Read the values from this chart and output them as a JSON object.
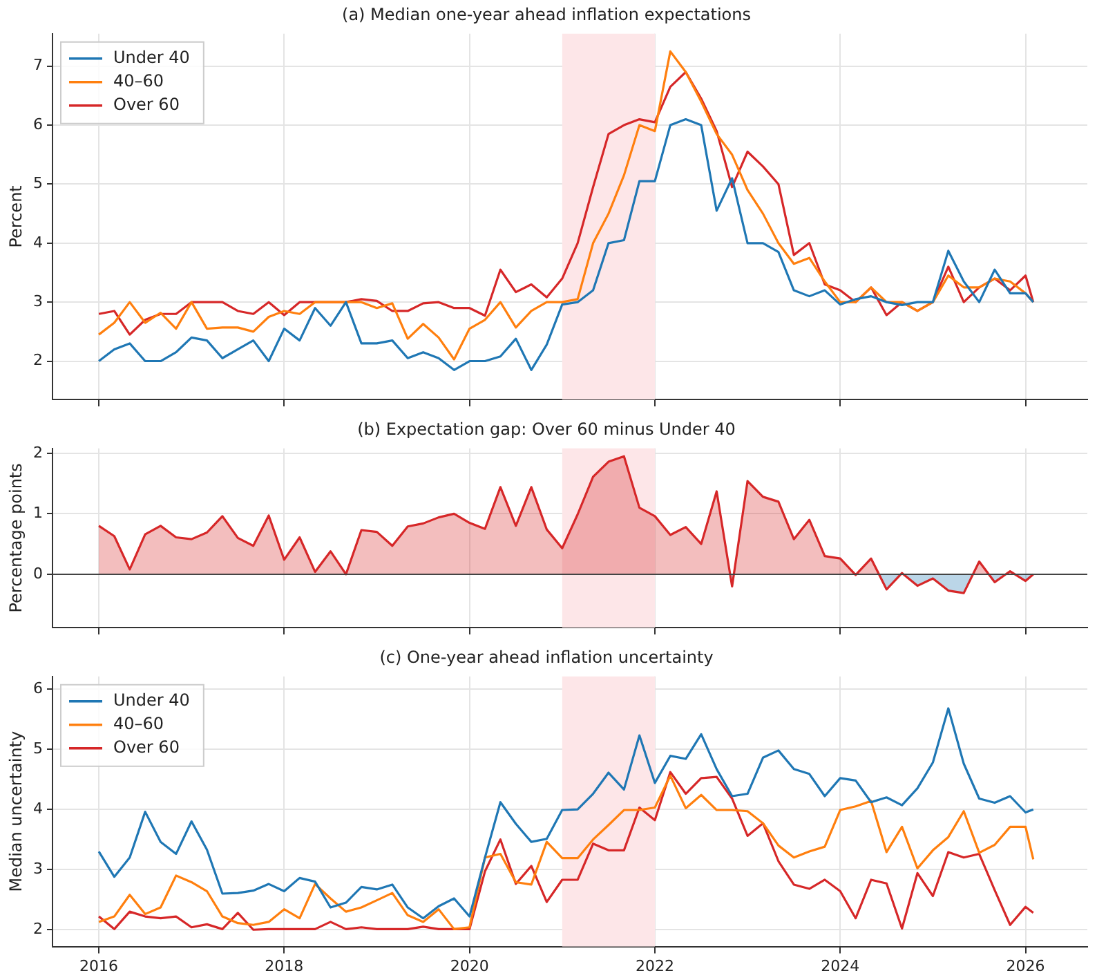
{
  "chart_data": [
    {
      "type": "line",
      "title": "(a) Median one-year ahead inflation expectations",
      "ylabel": "Percent",
      "x": [
        "2016-01",
        "2016-03",
        "2016-05",
        "2016-07",
        "2016-09",
        "2016-11",
        "2017-01",
        "2017-03",
        "2017-05",
        "2017-07",
        "2017-09",
        "2017-11",
        "2018-01",
        "2018-03",
        "2018-05",
        "2018-07",
        "2018-09",
        "2018-11",
        "2019-01",
        "2019-03",
        "2019-05",
        "2019-07",
        "2019-09",
        "2019-11",
        "2020-01",
        "2020-03",
        "2020-05",
        "2020-07",
        "2020-09",
        "2020-11",
        "2021-01",
        "2021-03",
        "2021-05",
        "2021-07",
        "2021-09",
        "2021-11",
        "2022-01",
        "2022-03",
        "2022-05",
        "2022-07",
        "2022-09",
        "2022-11",
        "2023-01",
        "2023-03",
        "2023-05",
        "2023-07",
        "2023-09",
        "2023-11",
        "2024-01",
        "2024-03",
        "2024-05",
        "2024-07",
        "2024-09",
        "2024-11",
        "2025-01",
        "2025-03",
        "2025-05",
        "2025-07",
        "2025-09",
        "2025-11",
        "2026-01",
        "2026-02"
      ],
      "series": [
        {
          "name": "Under 40",
          "color": "#1f77b4",
          "values": [
            2.0,
            2.2,
            2.3,
            2.0,
            2.0,
            2.15,
            2.4,
            2.35,
            2.05,
            2.2,
            2.35,
            2.0,
            2.55,
            2.35,
            2.9,
            2.6,
            3.0,
            2.3,
            2.3,
            2.35,
            2.05,
            2.15,
            2.05,
            1.85,
            2.0,
            2.0,
            2.08,
            2.38,
            1.85,
            2.28,
            2.96,
            3.0,
            3.2,
            4.0,
            4.05,
            5.05,
            5.05,
            6.0,
            6.1,
            6.0,
            4.55,
            5.1,
            4.0,
            4.0,
            3.85,
            3.2,
            3.1,
            3.2,
            2.96,
            3.05,
            3.1,
            3.0,
            2.95,
            3.0,
            3.0,
            3.87,
            3.35,
            3.0,
            3.55,
            3.15,
            3.15,
            3.0
          ]
        },
        {
          "name": "40–60",
          "color": "#ff7f0e",
          "values": [
            2.45,
            2.65,
            3.0,
            2.65,
            2.82,
            2.55,
            3.0,
            2.55,
            2.57,
            2.57,
            2.5,
            2.75,
            2.85,
            2.8,
            3.0,
            3.0,
            3.0,
            3.0,
            2.9,
            2.98,
            2.38,
            2.63,
            2.4,
            2.03,
            2.55,
            2.7,
            3.0,
            2.57,
            2.85,
            3.0,
            3.0,
            3.05,
            4.0,
            4.5,
            5.15,
            6.0,
            5.9,
            7.25,
            6.9,
            6.4,
            5.85,
            5.5,
            4.9,
            4.5,
            4.0,
            3.65,
            3.75,
            3.35,
            3.0,
            3.0,
            3.25,
            3.0,
            3.0,
            2.85,
            3.0,
            3.45,
            3.25,
            3.25,
            3.4,
            3.35,
            3.15,
            3.0
          ]
        },
        {
          "name": "Over 60",
          "color": "#d62728",
          "values": [
            2.8,
            2.85,
            2.45,
            2.7,
            2.8,
            2.8,
            3.0,
            3.0,
            3.0,
            2.85,
            2.8,
            3.0,
            2.78,
            3.0,
            3.0,
            3.0,
            3.0,
            3.05,
            3.02,
            2.85,
            2.85,
            2.98,
            3.0,
            2.9,
            2.9,
            2.77,
            3.55,
            3.17,
            3.3,
            3.08,
            3.4,
            4.0,
            4.95,
            5.85,
            6.0,
            6.1,
            6.05,
            6.65,
            6.9,
            6.45,
            5.9,
            4.95,
            5.55,
            5.3,
            5.0,
            3.8,
            4.0,
            3.3,
            3.2,
            3.0,
            3.25,
            2.78,
            3.0,
            2.85,
            3.0,
            3.6,
            3.0,
            3.25,
            3.4,
            3.2,
            3.45,
            3.0
          ]
        }
      ],
      "xlim": [
        "2015-07",
        "2026-09"
      ],
      "xticks": [
        "2016",
        "2018",
        "2020",
        "2022",
        "2024",
        "2026"
      ],
      "ylim": [
        1.35,
        7.55
      ],
      "yticks": [
        2,
        3,
        4,
        5,
        6,
        7
      ],
      "bands": [
        {
          "axis": "x",
          "from": "2021-01",
          "to": "2022-01",
          "color": "#fde6e8"
        }
      ],
      "grid": true,
      "legend": "top left",
      "tick_labels": "y"
    },
    {
      "type": "area",
      "title": "(b) Expectation gap: Over 60 minus Under 40",
      "ylabel": "Percentage points",
      "x": [
        "2016-01",
        "2016-03",
        "2016-05",
        "2016-07",
        "2016-09",
        "2016-11",
        "2017-01",
        "2017-03",
        "2017-05",
        "2017-07",
        "2017-09",
        "2017-11",
        "2018-01",
        "2018-03",
        "2018-05",
        "2018-07",
        "2018-09",
        "2018-11",
        "2019-01",
        "2019-03",
        "2019-05",
        "2019-07",
        "2019-09",
        "2019-11",
        "2020-01",
        "2020-03",
        "2020-05",
        "2020-07",
        "2020-09",
        "2020-11",
        "2021-01",
        "2021-03",
        "2021-05",
        "2021-07",
        "2021-09",
        "2021-11",
        "2022-01",
        "2022-03",
        "2022-05",
        "2022-07",
        "2022-09",
        "2022-11",
        "2023-01",
        "2023-03",
        "2023-05",
        "2023-07",
        "2023-09",
        "2023-11",
        "2024-01",
        "2024-03",
        "2024-05",
        "2024-07",
        "2024-09",
        "2024-11",
        "2025-01",
        "2025-03",
        "2025-05",
        "2025-07",
        "2025-09",
        "2025-11",
        "2026-01",
        "2026-02"
      ],
      "series": [
        {
          "color": "#d62728",
          "values": [
            0.8,
            0.63,
            0.08,
            0.66,
            0.8,
            0.61,
            0.58,
            0.69,
            0.96,
            0.6,
            0.47,
            0.97,
            0.24,
            0.61,
            0.04,
            0.38,
            0.0,
            0.73,
            0.7,
            0.47,
            0.79,
            0.84,
            0.94,
            1.0,
            0.85,
            0.75,
            1.44,
            0.8,
            1.44,
            0.74,
            0.43,
            0.99,
            1.61,
            1.86,
            1.95,
            1.1,
            0.96,
            0.65,
            0.78,
            0.5,
            1.37,
            -0.2,
            1.54,
            1.28,
            1.2,
            0.58,
            0.9,
            0.3,
            0.26,
            -0.01,
            0.26,
            -0.25,
            0.02,
            -0.19,
            -0.07,
            -0.27,
            -0.31,
            0.21,
            -0.13,
            0.05,
            -0.11,
            0.0
          ]
        }
      ],
      "xlim": [
        "2015-07",
        "2026-09"
      ],
      "xticks": [
        "2016",
        "2018",
        "2020",
        "2022",
        "2024",
        "2026"
      ],
      "ylim": [
        -0.88,
        2.08
      ],
      "yticks": [
        0,
        1,
        2
      ],
      "bands": [
        {
          "axis": "x",
          "from": "2021-01",
          "to": "2022-01",
          "color": "#fde6e8"
        }
      ],
      "ref_lines": [
        {
          "axis": "y",
          "value": 0,
          "color": "#444444"
        }
      ],
      "grid": true,
      "tick_labels": "y"
    },
    {
      "type": "line",
      "title": "(c) One-year ahead inflation uncertainty",
      "ylabel": "Median uncertainty",
      "x": [
        "2016-01",
        "2016-03",
        "2016-05",
        "2016-07",
        "2016-09",
        "2016-11",
        "2017-01",
        "2017-03",
        "2017-05",
        "2017-07",
        "2017-09",
        "2017-11",
        "2018-01",
        "2018-03",
        "2018-05",
        "2018-07",
        "2018-09",
        "2018-11",
        "2019-01",
        "2019-03",
        "2019-05",
        "2019-07",
        "2019-09",
        "2019-11",
        "2020-01",
        "2020-03",
        "2020-05",
        "2020-07",
        "2020-09",
        "2020-11",
        "2021-01",
        "2021-03",
        "2021-05",
        "2021-07",
        "2021-09",
        "2021-11",
        "2022-01",
        "2022-03",
        "2022-05",
        "2022-07",
        "2022-09",
        "2022-11",
        "2023-01",
        "2023-03",
        "2023-05",
        "2023-07",
        "2023-09",
        "2023-11",
        "2024-01",
        "2024-03",
        "2024-05",
        "2024-07",
        "2024-09",
        "2024-11",
        "2025-01",
        "2025-03",
        "2025-05",
        "2025-07",
        "2025-09",
        "2025-11",
        "2026-01",
        "2026-02"
      ],
      "series": [
        {
          "name": "Under 40",
          "color": "#1f77b4",
          "values": [
            3.3,
            2.88,
            3.2,
            3.96,
            3.46,
            3.26,
            3.8,
            3.33,
            2.6,
            2.61,
            2.65,
            2.76,
            2.64,
            2.86,
            2.8,
            2.37,
            2.45,
            2.71,
            2.67,
            2.75,
            2.37,
            2.19,
            2.39,
            2.52,
            2.22,
            3.2,
            4.12,
            3.76,
            3.46,
            3.51,
            3.99,
            4.0,
            4.26,
            4.61,
            4.33,
            5.23,
            4.44,
            4.89,
            4.84,
            5.25,
            4.67,
            4.22,
            4.26,
            4.86,
            4.98,
            4.67,
            4.59,
            4.22,
            4.52,
            4.48,
            4.12,
            4.2,
            4.07,
            4.35,
            4.78,
            5.68,
            4.76,
            4.18,
            4.11,
            4.22,
            3.95,
            4.0
          ]
        },
        {
          "name": "40–60",
          "color": "#ff7f0e",
          "values": [
            2.13,
            2.22,
            2.58,
            2.26,
            2.37,
            2.9,
            2.79,
            2.64,
            2.22,
            2.11,
            2.08,
            2.13,
            2.34,
            2.19,
            2.76,
            2.52,
            2.3,
            2.37,
            2.49,
            2.61,
            2.24,
            2.13,
            2.34,
            2.01,
            2.04,
            3.2,
            3.26,
            2.79,
            2.75,
            3.46,
            3.19,
            3.19,
            3.5,
            3.74,
            3.99,
            3.99,
            4.03,
            4.56,
            4.02,
            4.24,
            3.99,
            3.99,
            3.97,
            3.77,
            3.4,
            3.2,
            3.3,
            3.38,
            3.99,
            4.05,
            4.14,
            3.29,
            3.71,
            3.02,
            3.32,
            3.54,
            3.97,
            3.28,
            3.41,
            3.71,
            3.71,
            3.17
          ]
        },
        {
          "name": "Over 60",
          "color": "#d62728",
          "values": [
            2.22,
            2.01,
            2.3,
            2.22,
            2.19,
            2.22,
            2.04,
            2.09,
            2.01,
            2.28,
            2.0,
            2.01,
            2.01,
            2.01,
            2.01,
            2.13,
            2.01,
            2.04,
            2.01,
            2.01,
            2.01,
            2.05,
            2.01,
            2.01,
            2.01,
            2.97,
            3.5,
            2.76,
            3.06,
            2.46,
            2.83,
            2.83,
            3.43,
            3.32,
            3.32,
            4.03,
            3.82,
            4.62,
            4.26,
            4.52,
            4.54,
            4.18,
            3.56,
            3.77,
            3.14,
            2.75,
            2.68,
            2.83,
            2.64,
            2.19,
            2.83,
            2.77,
            2.02,
            2.94,
            2.56,
            3.29,
            3.2,
            3.26,
            2.66,
            2.08,
            2.38,
            2.28
          ]
        }
      ],
      "xlim": [
        "2015-07",
        "2026-09"
      ],
      "xticks": [
        "2016",
        "2018",
        "2020",
        "2022",
        "2024",
        "2026"
      ],
      "ylim": [
        1.72,
        6.21
      ],
      "yticks": [
        2,
        3,
        4,
        5,
        6
      ],
      "bands": [
        {
          "axis": "x",
          "from": "2021-01",
          "to": "2022-01",
          "color": "#fde6e8"
        }
      ],
      "grid": true,
      "legend": "top left"
    }
  ]
}
